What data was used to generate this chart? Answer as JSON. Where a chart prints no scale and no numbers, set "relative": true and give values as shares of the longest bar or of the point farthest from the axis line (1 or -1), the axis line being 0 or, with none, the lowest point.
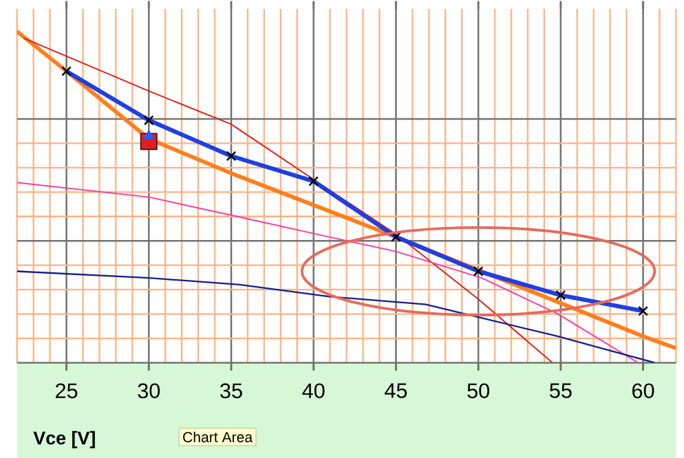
{
  "chart_data": {
    "type": "line",
    "relative": true,
    "xlabel": "Vce [V]",
    "annotations": [
      "Chart Area"
    ],
    "xlim": [
      22,
      62
    ],
    "xticks": [
      {
        "value": 22,
        "label": null
      },
      {
        "value": 23,
        "label": null
      },
      {
        "value": 24,
        "label": null
      },
      25,
      {
        "value": 26,
        "label": null
      },
      {
        "value": 27,
        "label": null
      },
      {
        "value": 28,
        "label": null
      },
      {
        "value": 29,
        "label": null
      },
      30,
      {
        "value": 31,
        "label": null
      },
      {
        "value": 32,
        "label": null
      },
      {
        "value": 33,
        "label": null
      },
      {
        "value": 34,
        "label": null
      },
      35,
      {
        "value": 36,
        "label": null
      },
      {
        "value": 37,
        "label": null
      },
      {
        "value": 38,
        "label": null
      },
      {
        "value": 39,
        "label": null
      },
      40,
      {
        "value": 41,
        "label": null
      },
      {
        "value": 42,
        "label": null
      },
      {
        "value": 43,
        "label": null
      },
      {
        "value": 44,
        "label": null
      },
      45,
      {
        "value": 46,
        "label": null
      },
      {
        "value": 47,
        "label": null
      },
      {
        "value": 48,
        "label": null
      },
      {
        "value": 49,
        "label": null
      },
      50,
      {
        "value": 51,
        "label": null
      },
      {
        "value": 52,
        "label": null
      },
      {
        "value": 53,
        "label": null
      },
      {
        "value": 54,
        "label": null
      },
      55,
      {
        "value": 56,
        "label": null
      },
      {
        "value": 57,
        "label": null
      },
      {
        "value": 58,
        "label": null
      },
      {
        "value": 59,
        "label": null
      },
      60,
      {
        "value": 61,
        "label": null
      },
      {
        "value": 62,
        "label": null
      }
    ],
    "grid": true,
    "series": [
      {
        "color": "#ff7f1e",
        "x": [
          22,
          25,
          30,
          35,
          40,
          45,
          50,
          55,
          60,
          62
        ],
        "values": [
          1.0,
          0.88,
          0.676,
          0.572,
          0.476,
          0.38,
          0.28,
          0.18,
          0.08,
          0.044
        ],
        "marker": "none"
      },
      {
        "color": "#e0201a",
        "x": [
          22.4,
          30,
          35,
          39.8,
          45,
          50,
          54.5
        ],
        "values": [
          0.98,
          0.82,
          0.72,
          0.56,
          0.388,
          0.192,
          0
        ],
        "marker": "none"
      },
      {
        "color": "#ff3aa0",
        "x": [
          22,
          30,
          35.5,
          40.9,
          45,
          50.2,
          54.8,
          59.7
        ],
        "values": [
          0.544,
          0.5,
          0.44,
          0.38,
          0.336,
          0.256,
          0.148,
          0
        ],
        "marker": "none"
      },
      {
        "color": "#102090",
        "x": [
          22,
          30,
          35.5,
          40.9,
          46.8,
          54.8,
          60.7
        ],
        "values": [
          0.276,
          0.256,
          0.236,
          0.2,
          0.176,
          0.08,
          0
        ],
        "marker": "none"
      },
      {
        "color": "#1f3fe0",
        "x": [
          25,
          30,
          35,
          40,
          45,
          50,
          55,
          60
        ],
        "values": [
          0.88,
          0.732,
          0.624,
          0.548,
          0.38,
          0.276,
          0.204,
          0.156
        ],
        "marker": "cross"
      },
      {
        "type": "scatter",
        "color": "#e02020",
        "x": [
          30
        ],
        "values": [
          0.668
        ],
        "marker": "square"
      },
      {
        "type": "scatter",
        "color": "#2060ff",
        "x": [
          30
        ],
        "values": [
          0.684
        ],
        "marker": "triangle"
      }
    ]
  }
}
